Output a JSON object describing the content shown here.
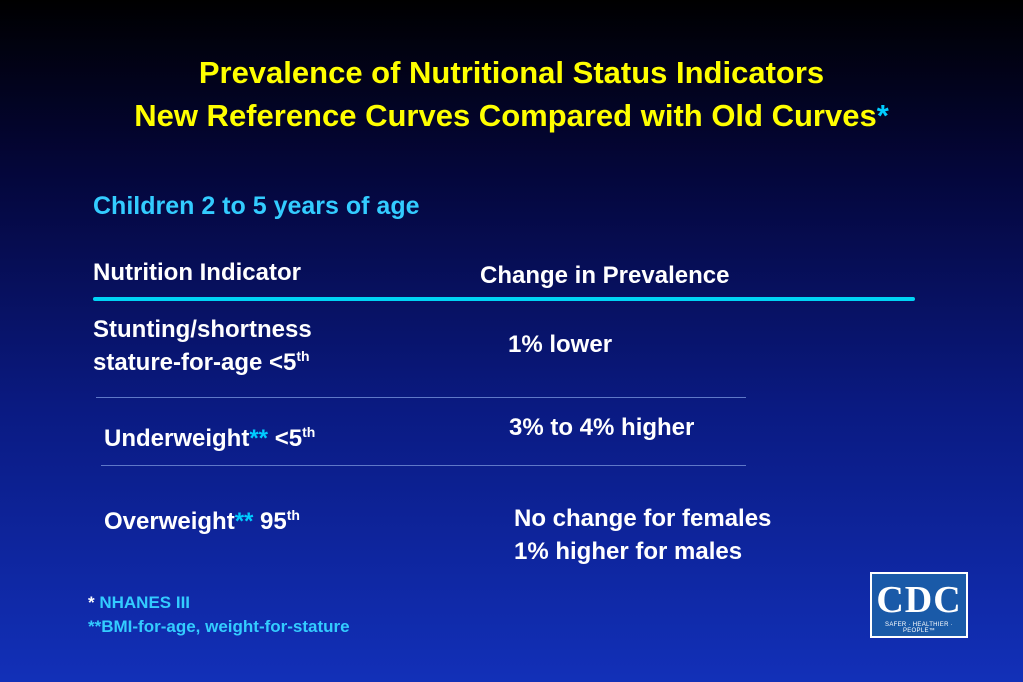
{
  "title": {
    "line1": "Prevalence of Nutritional Status Indicators",
    "line2": "New Reference Curves Compared with Old Curves",
    "line2_star": "*"
  },
  "subtitle": "Children 2 to 5 years of age",
  "headers": {
    "indicator": "Nutrition Indicator",
    "change": "Change in Prevalence"
  },
  "rows": [
    {
      "indicator_line1": "Stunting/shortness",
      "indicator_line2": "stature-for-age <5",
      "indicator_sup": "th",
      "change": "1% lower"
    },
    {
      "indicator": "Underweight",
      "indicator_stars": "**",
      "indicator_suffix": " <5",
      "indicator_sup": "th",
      "change": "3% to 4% higher"
    },
    {
      "indicator": "Overweight",
      "indicator_stars": "**",
      "indicator_suffix": " 95",
      "indicator_sup": "th",
      "change_line1": "No change for females",
      "change_line2": "1% higher for males"
    }
  ],
  "footnotes": {
    "note1_star": "*",
    "note1": " NHANES III",
    "note2": "**BMI-for-age, weight-for-stature"
  },
  "logo": {
    "text": "CDC",
    "tagline": "SAFER · HEALTHIER · PEOPLE™"
  },
  "colors": {
    "title": "#ffff00",
    "accent": "#00ccff",
    "text": "#ffffff"
  }
}
